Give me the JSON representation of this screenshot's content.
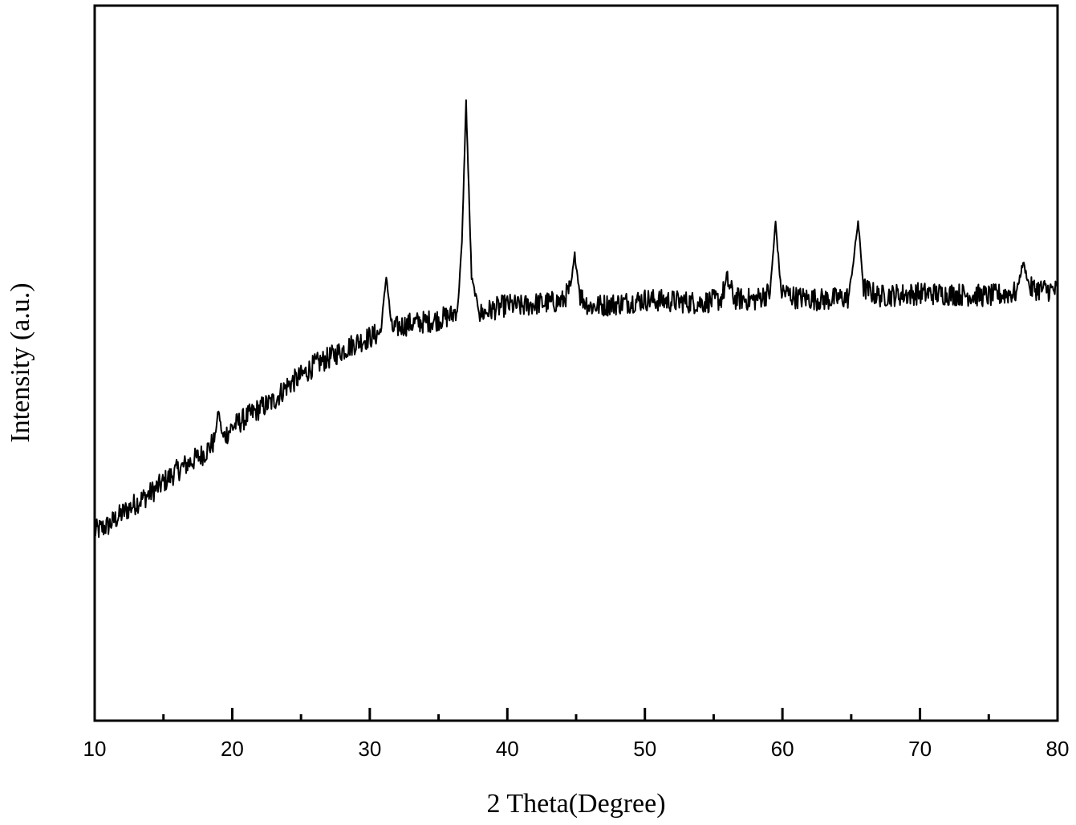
{
  "chart_data": {
    "type": "line",
    "title": "",
    "xlabel": "2 Theta(Degree)",
    "ylabel": "Intensity (a.u.)",
    "xlim": [
      10,
      80
    ],
    "ylim": [
      0,
      1000
    ],
    "x_ticks_major": [
      10,
      20,
      30,
      40,
      50,
      60,
      70,
      80
    ],
    "x_ticks_minor": [
      15,
      25,
      35,
      45,
      55,
      65,
      75
    ],
    "y_tick_labels": false,
    "grid": false,
    "legend": "none",
    "line_color": "#000000",
    "series": [
      {
        "x": [
          10,
          11,
          12,
          13,
          14,
          15,
          16,
          17,
          18,
          18.7,
          19.0,
          19.3,
          20,
          21,
          22,
          23,
          24,
          25,
          26,
          27,
          28,
          29,
          30,
          30.8,
          31.2,
          31.6,
          32,
          33,
          34,
          35,
          36,
          36.4,
          36.7,
          37.0,
          37.4,
          38,
          39,
          40,
          41,
          42,
          43,
          44,
          44.6,
          44.9,
          45.3,
          46,
          48,
          50,
          52,
          54,
          55.5,
          56.0,
          56.5,
          58,
          59.1,
          59.5,
          59.9,
          61,
          63,
          64.8,
          65.2,
          65.5,
          65.9,
          67,
          70,
          73,
          75,
          77,
          77.5,
          78,
          80
        ],
        "y": [
          170,
          182,
          205,
          225,
          243,
          265,
          288,
          305,
          322,
          345,
          405,
          350,
          372,
          390,
          408,
          422,
          452,
          470,
          492,
          505,
          520,
          535,
          545,
          555,
          665,
          560,
          565,
          572,
          575,
          580,
          588,
          605,
          728,
          1000,
          660,
          590,
          600,
          608,
          605,
          610,
          612,
          615,
          640,
          705,
          625,
          605,
          610,
          618,
          615,
          612,
          618,
          655,
          620,
          618,
          632,
          768,
          635,
          622,
          618,
          622,
          700,
          770,
          640,
          625,
          630,
          628,
          625,
          632,
          690,
          640,
          635
        ]
      }
    ]
  }
}
